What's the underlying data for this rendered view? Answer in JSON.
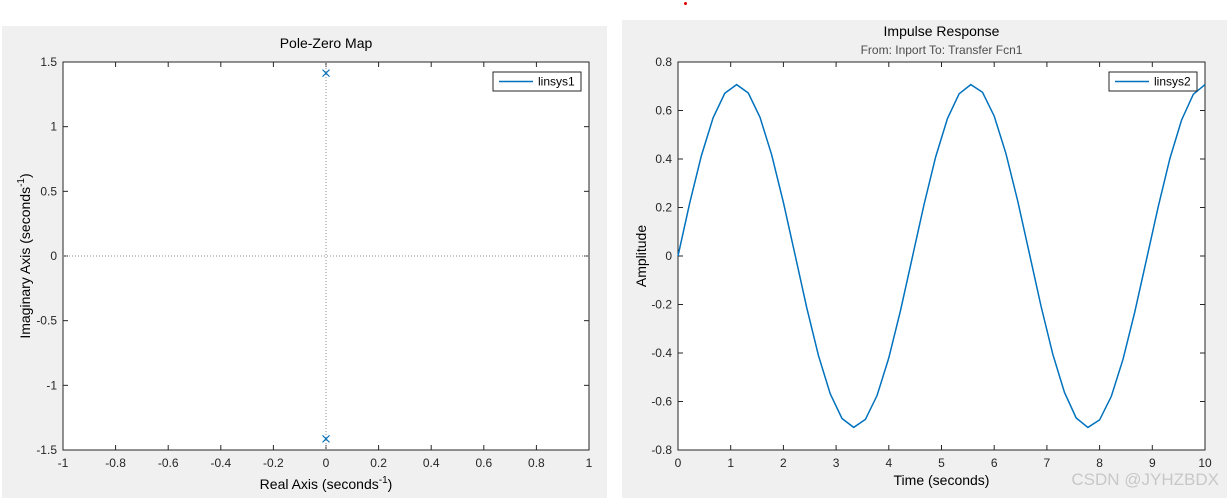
{
  "chart_data": [
    {
      "type": "scatter",
      "title": "Pole-Zero Map",
      "xlabel": "Real Axis (seconds",
      "xlabel_sup": "-1",
      "ylabel": "Imaginary Axis (seconds",
      "ylabel_sup": "-1",
      "xlim": [
        -1,
        1
      ],
      "ylim": [
        -1.5,
        1.5
      ],
      "xticks": [
        -1,
        -0.8,
        -0.6,
        -0.4,
        -0.2,
        0,
        0.2,
        0.4,
        0.6,
        0.8,
        1
      ],
      "xtick_labels": [
        "-1",
        "-0.8",
        "-0.6",
        "-0.4",
        "-0.2",
        "0",
        "0.2",
        "0.4",
        "0.6",
        "0.8",
        "1"
      ],
      "yticks": [
        -1.5,
        -1,
        -0.5,
        0,
        0.5,
        1,
        1.5
      ],
      "ytick_labels": [
        "-1.5",
        "-1",
        "-0.5",
        "0",
        "0.5",
        "1",
        "1.5"
      ],
      "grid": false,
      "legend_position": "top-right",
      "series": [
        {
          "name": "linsys1",
          "marker": "x",
          "color": "#0072bd",
          "points": [
            [
              0,
              1.414
            ],
            [
              0,
              -1.414
            ]
          ]
        }
      ],
      "reference_lines": {
        "x0": true,
        "y0": true
      }
    },
    {
      "type": "line",
      "title": "Impulse Response",
      "subtitle": "From: Inport  To: Transfer Fcn1",
      "xlabel": "Time (seconds)",
      "ylabel": "Amplitude",
      "xlim": [
        0,
        10
      ],
      "ylim": [
        -0.8,
        0.8
      ],
      "xticks": [
        0,
        1,
        2,
        3,
        4,
        5,
        6,
        7,
        8,
        9,
        10
      ],
      "xtick_labels": [
        "0",
        "1",
        "2",
        "3",
        "4",
        "5",
        "6",
        "7",
        "8",
        "9",
        "10"
      ],
      "yticks": [
        -0.8,
        -0.6,
        -0.4,
        -0.2,
        0,
        0.2,
        0.4,
        0.6,
        0.8
      ],
      "ytick_labels": [
        "-0.8",
        "-0.6",
        "-0.4",
        "-0.2",
        "0",
        "0.2",
        "0.4",
        "0.6",
        "0.8"
      ],
      "grid": false,
      "legend_position": "top-right",
      "series": [
        {
          "name": "linsys2",
          "color": "#0072bd",
          "x": [
            0,
            0.2222,
            0.4444,
            0.6667,
            0.8889,
            1.1111,
            1.3333,
            1.5556,
            1.7778,
            2.0,
            2.2222,
            2.4444,
            2.6667,
            2.8889,
            3.1111,
            3.3333,
            3.5556,
            3.7778,
            4.0,
            4.2222,
            4.4444,
            4.6667,
            4.8889,
            5.1111,
            5.3333,
            5.5556,
            5.7778,
            6.0,
            6.2222,
            6.4444,
            6.6667,
            6.8889,
            7.1111,
            7.3333,
            7.5556,
            7.7778,
            8.0,
            8.2222,
            8.4444,
            8.6667,
            8.8889,
            9.1111,
            9.3333,
            9.5556,
            9.7778,
            10.0
          ],
          "y": [
            0,
            0.218,
            0.414,
            0.57,
            0.671,
            0.707,
            0.672,
            0.572,
            0.417,
            0.221,
            0.004,
            -0.214,
            -0.411,
            -0.568,
            -0.67,
            -0.707,
            -0.674,
            -0.575,
            -0.42,
            -0.225,
            -0.008,
            0.21,
            0.408,
            0.566,
            0.669,
            0.707,
            0.675,
            0.577,
            0.423,
            0.229,
            0.012,
            -0.206,
            -0.405,
            -0.563,
            -0.668,
            -0.707,
            -0.676,
            -0.579,
            -0.426,
            -0.232,
            -0.016,
            0.203,
            0.402,
            0.561,
            0.667,
            0.707
          ]
        }
      ]
    }
  ],
  "watermark": "CSDN @JYHZBDX"
}
